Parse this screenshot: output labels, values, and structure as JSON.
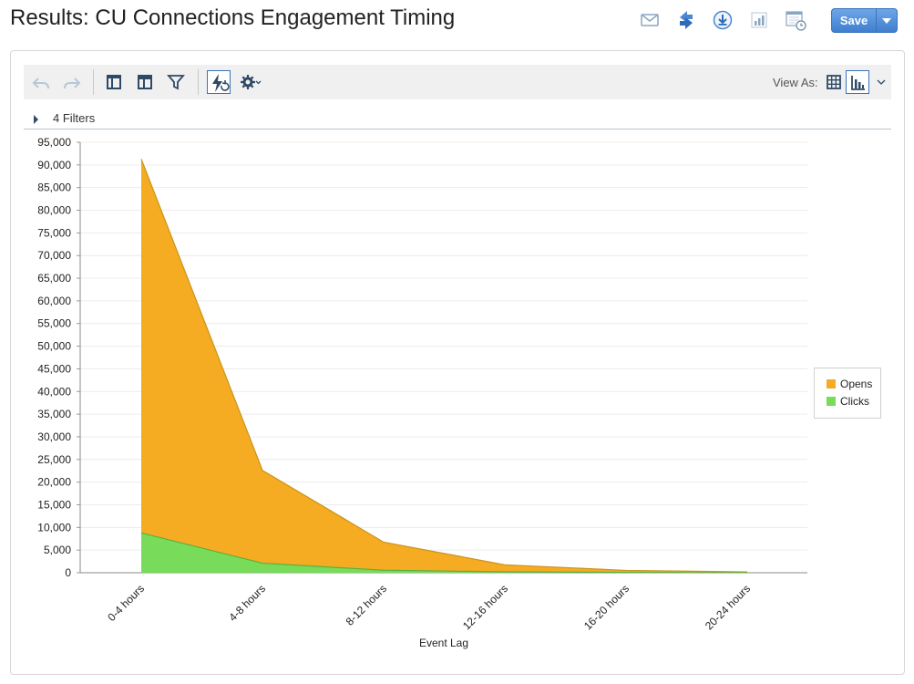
{
  "page": {
    "title": "Results: CU Connections Engagement Timing"
  },
  "header_actions": [
    {
      "name": "email-icon"
    },
    {
      "name": "refresh-icon"
    },
    {
      "name": "download-icon"
    },
    {
      "name": "add-to-dashboard-icon"
    },
    {
      "name": "schedule-icon"
    }
  ],
  "save": {
    "label": "Save"
  },
  "toolbar": {
    "undo": "undo-icon",
    "redo": "redo-icon",
    "view_as_label": "View As:"
  },
  "filters": {
    "label": "4 Filters"
  },
  "colors": {
    "opens": "#f5ab22",
    "opens_line": "#c8951c",
    "clicks": "#78dc5a",
    "clicks_line": "#5cae3e",
    "accent": "#4a86d4"
  },
  "chart_data": {
    "type": "area",
    "stacked": true,
    "categories": [
      "0-4 hours",
      "4-8 hours",
      "8-12 hours",
      "12-16 hours",
      "16-20 hours",
      "20-24 hours"
    ],
    "series": [
      {
        "name": "Opens",
        "values": [
          82500,
          20500,
          6200,
          1550,
          450,
          150
        ]
      },
      {
        "name": "Clicks",
        "values": [
          8800,
          2100,
          550,
          200,
          70,
          20
        ]
      }
    ],
    "xlabel": "Event Lag",
    "ylabel": "",
    "ylim": [
      0,
      95000
    ],
    "ytick_step": 5000,
    "grid": true,
    "legend": "right"
  }
}
